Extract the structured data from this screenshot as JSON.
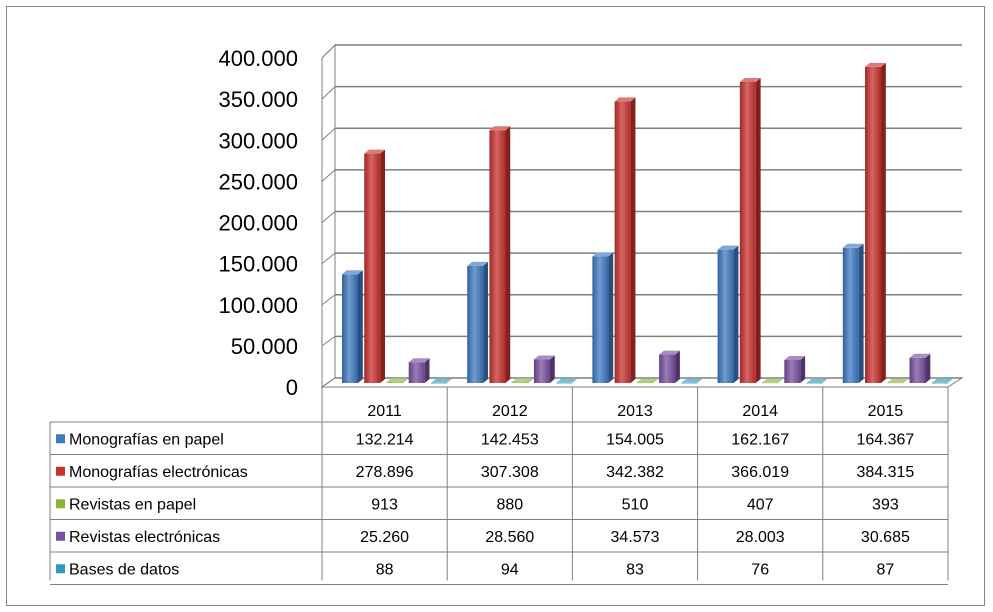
{
  "chart_data": {
    "type": "bar",
    "style": "3d-clustered-column-with-data-table",
    "categories": [
      "2011",
      "2012",
      "2013",
      "2014",
      "2015"
    ],
    "ylim": [
      0,
      400000
    ],
    "yticks": [
      0,
      50000,
      100000,
      150000,
      200000,
      250000,
      300000,
      350000,
      400000
    ],
    "ytick_labels": [
      "0",
      "50.000",
      "100.000",
      "150.000",
      "200.000",
      "250.000",
      "300.000",
      "350.000",
      "400.000"
    ],
    "grid": true,
    "legend": "data-table-left",
    "series": [
      {
        "name": "Monografías en papel",
        "color": "#3E79C2",
        "values": [
          132214,
          142453,
          154005,
          162167,
          164367
        ],
        "labels": [
          "132.214",
          "142.453",
          "154.005",
          "162.167",
          "164.367"
        ]
      },
      {
        "name": "Monografías electrónicas",
        "color": "#C8322E",
        "values": [
          278896,
          307308,
          342382,
          366019,
          384315
        ],
        "labels": [
          "278.896",
          "307.308",
          "342.382",
          "366.019",
          "384.315"
        ]
      },
      {
        "name": "Revistas en papel",
        "color": "#8DB33C",
        "values": [
          913,
          880,
          510,
          407,
          393
        ],
        "labels": [
          "913",
          "880",
          "510",
          "407",
          "393"
        ]
      },
      {
        "name": "Revistas electrónicas",
        "color": "#7850A2",
        "values": [
          25260,
          28560,
          34573,
          28003,
          30685
        ],
        "labels": [
          "25.260",
          "28.560",
          "34.573",
          "28.003",
          "30.685"
        ]
      },
      {
        "name": "Bases de datos",
        "color": "#2C9DB8",
        "values": [
          88,
          94,
          83,
          76,
          87
        ],
        "labels": [
          "88",
          "94",
          "83",
          "76",
          "87"
        ]
      }
    ]
  }
}
